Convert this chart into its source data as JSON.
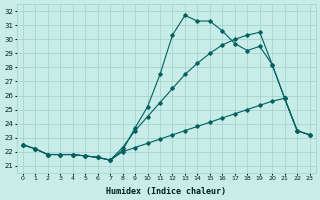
{
  "bg_color": "#c8ece8",
  "grid_color": "#a8d4d0",
  "line_color": "#006060",
  "xlabel": "Humidex (Indice chaleur)",
  "xlim": [
    -0.5,
    23.5
  ],
  "ylim": [
    20.5,
    32.5
  ],
  "xticks": [
    0,
    1,
    2,
    3,
    4,
    5,
    6,
    7,
    8,
    9,
    10,
    11,
    12,
    13,
    14,
    15,
    16,
    17,
    18,
    19,
    20,
    21,
    22,
    23
  ],
  "yticks": [
    21,
    22,
    23,
    24,
    25,
    26,
    27,
    28,
    29,
    30,
    31,
    32
  ],
  "series1_x": [
    0,
    1,
    2,
    3,
    4,
    5,
    6,
    7,
    8,
    9,
    10,
    11,
    12,
    13,
    14,
    15,
    16,
    17,
    18,
    19,
    20,
    21,
    22,
    23
  ],
  "series1_y": [
    22.5,
    22.2,
    21.8,
    21.8,
    21.8,
    21.7,
    21.6,
    21.4,
    22.1,
    23.7,
    25.2,
    27.5,
    30.3,
    31.7,
    31.3,
    31.3,
    30.6,
    29.7,
    29.2,
    29.5,
    28.2,
    25.8,
    23.5,
    23.2
  ],
  "series2_x": [
    0,
    1,
    2,
    3,
    4,
    5,
    6,
    7,
    8,
    9,
    10,
    11,
    12,
    13,
    14,
    15,
    16,
    17,
    18,
    19,
    20,
    21,
    22,
    23
  ],
  "series2_y": [
    22.5,
    22.2,
    21.8,
    21.8,
    21.8,
    21.7,
    21.6,
    21.4,
    22.3,
    23.5,
    24.5,
    25.5,
    26.5,
    27.5,
    28.3,
    29.0,
    29.6,
    30.0,
    30.3,
    30.5,
    28.2,
    25.8,
    23.5,
    23.2
  ],
  "series3_x": [
    0,
    1,
    2,
    3,
    4,
    5,
    6,
    7,
    8,
    9,
    10,
    11,
    12,
    13,
    14,
    15,
    16,
    17,
    18,
    19,
    20,
    21,
    22,
    23
  ],
  "series3_y": [
    22.5,
    22.2,
    21.8,
    21.8,
    21.8,
    21.7,
    21.6,
    21.4,
    22.0,
    22.3,
    22.6,
    22.9,
    23.2,
    23.5,
    23.8,
    24.1,
    24.4,
    24.7,
    25.0,
    25.3,
    25.6,
    25.8,
    23.5,
    23.2
  ]
}
